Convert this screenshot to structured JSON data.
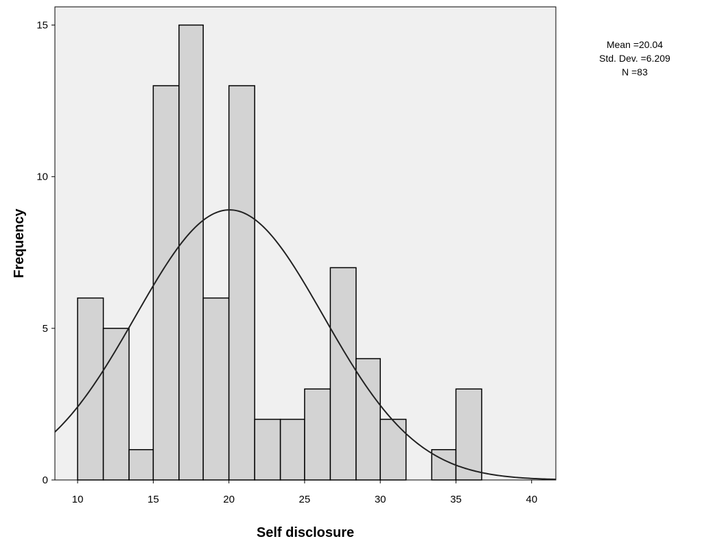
{
  "chart_data": {
    "type": "bar",
    "subtype": "histogram",
    "xlabel": "Self disclosure",
    "ylabel": "Frequency",
    "xlim": [
      8.5,
      41.6
    ],
    "ylim": [
      0,
      15.6
    ],
    "x_ticks": [
      "10",
      "15",
      "20",
      "25",
      "30",
      "35",
      "40"
    ],
    "y_ticks": [
      "0",
      "5",
      "10",
      "15"
    ],
    "bins": [
      {
        "start": 10.0,
        "end": 11.7,
        "value": 6
      },
      {
        "start": 11.7,
        "end": 13.4,
        "value": 5
      },
      {
        "start": 13.4,
        "end": 15.0,
        "value": 1
      },
      {
        "start": 15.0,
        "end": 16.7,
        "value": 13
      },
      {
        "start": 16.7,
        "end": 18.3,
        "value": 15
      },
      {
        "start": 18.3,
        "end": 20.0,
        "value": 6
      },
      {
        "start": 20.0,
        "end": 21.7,
        "value": 13
      },
      {
        "start": 21.7,
        "end": 23.4,
        "value": 2
      },
      {
        "start": 23.4,
        "end": 25.0,
        "value": 2
      },
      {
        "start": 25.0,
        "end": 26.7,
        "value": 3
      },
      {
        "start": 26.7,
        "end": 28.4,
        "value": 7
      },
      {
        "start": 28.4,
        "end": 30.0,
        "value": 4
      },
      {
        "start": 30.0,
        "end": 31.7,
        "value": 2
      },
      {
        "start": 33.4,
        "end": 35.0,
        "value": 1
      },
      {
        "start": 35.0,
        "end": 36.7,
        "value": 3
      }
    ],
    "normal_curve": {
      "mean": 20.04,
      "sd": 6.209,
      "n": 83,
      "bin_width": 1.67
    },
    "stats_text": [
      "Mean =20.04",
      "Std. Dev. =6.209",
      "N =83"
    ],
    "plot_background": "#f0f0f0",
    "bar_color": "#d3d3d3",
    "grid": false,
    "legend": "none"
  }
}
